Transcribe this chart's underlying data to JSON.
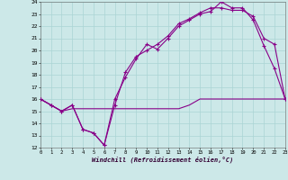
{
  "xlabel": "Windchill (Refroidissement éolien,°C)",
  "bg_color": "#cce8e8",
  "line_color": "#880088",
  "grid_color": "#aad4d4",
  "xlim": [
    0,
    23
  ],
  "ylim": [
    12,
    24
  ],
  "xticks": [
    0,
    1,
    2,
    3,
    4,
    5,
    6,
    7,
    8,
    9,
    10,
    11,
    12,
    13,
    14,
    15,
    16,
    17,
    18,
    19,
    20,
    21,
    22,
    23
  ],
  "yticks": [
    12,
    13,
    14,
    15,
    16,
    17,
    18,
    19,
    20,
    21,
    22,
    23,
    24
  ],
  "line1_x": [
    0,
    1,
    2,
    3,
    4,
    5,
    6,
    7,
    8,
    9,
    10,
    11,
    12,
    13,
    14,
    15,
    16,
    17,
    18,
    19,
    20,
    21,
    22,
    23
  ],
  "line1_y": [
    16.0,
    15.5,
    15.0,
    15.5,
    13.5,
    13.2,
    12.2,
    16.0,
    17.8,
    19.3,
    20.5,
    20.1,
    21.0,
    22.0,
    22.5,
    23.0,
    23.2,
    24.0,
    23.5,
    23.5,
    22.5,
    20.4,
    18.5,
    16.0
  ],
  "line2_x": [
    0,
    1,
    2,
    3,
    4,
    5,
    6,
    7,
    8,
    9,
    10,
    11,
    12,
    13,
    14,
    15,
    16,
    17,
    18,
    19,
    20,
    21,
    22,
    23
  ],
  "line2_y": [
    16.0,
    15.5,
    15.0,
    15.5,
    13.5,
    13.2,
    12.2,
    15.5,
    18.2,
    19.5,
    20.0,
    20.5,
    21.2,
    22.2,
    22.6,
    23.1,
    23.5,
    23.5,
    23.3,
    23.3,
    22.8,
    21.0,
    20.5,
    16.0
  ],
  "line3_x": [
    0,
    1,
    2,
    3,
    4,
    5,
    6,
    7,
    8,
    9,
    10,
    11,
    12,
    13,
    14,
    15,
    16,
    17,
    18,
    19,
    20,
    21,
    22,
    23
  ],
  "line3_y": [
    16.0,
    15.5,
    15.0,
    15.2,
    15.2,
    15.2,
    15.2,
    15.2,
    15.2,
    15.2,
    15.2,
    15.2,
    15.2,
    15.2,
    15.5,
    16.0,
    16.0,
    16.0,
    16.0,
    16.0,
    16.0,
    16.0,
    16.0,
    16.0
  ],
  "figsize": [
    3.2,
    2.0
  ],
  "dpi": 100
}
